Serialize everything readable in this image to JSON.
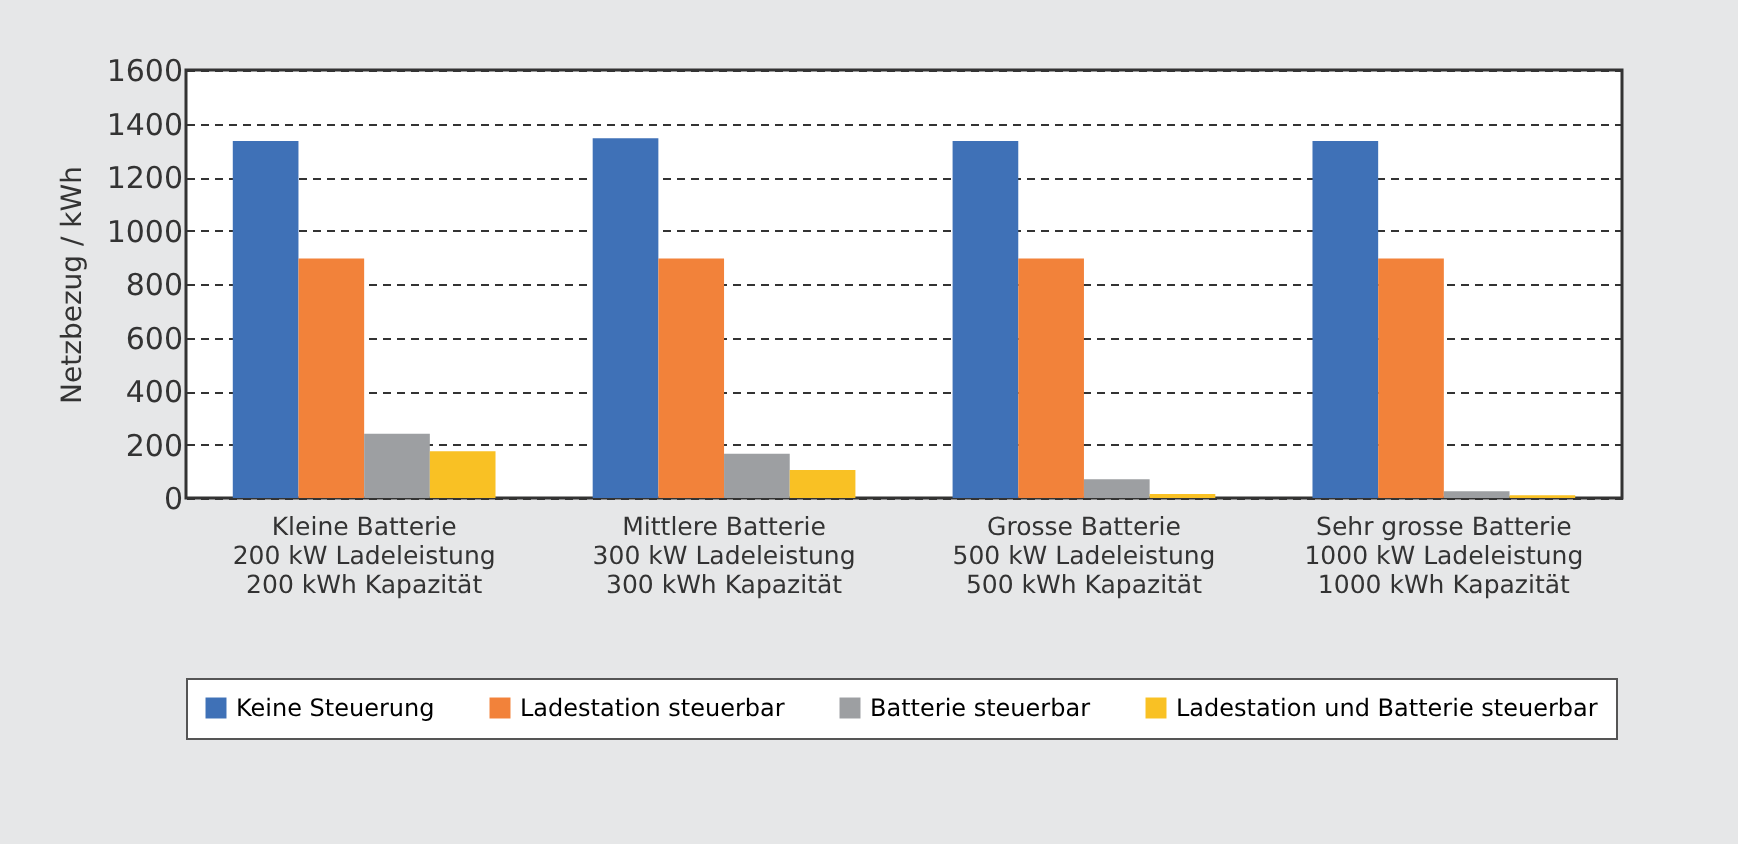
{
  "chart_data": {
    "type": "bar",
    "ylabel": "Netzbezug / kWh",
    "categories": [
      "Kleine Batterie\n200 kW Ladeleistung\n200 kWh Kapazität",
      "Mittlere Batterie\n300 kW Ladeleistung\n300 kWh Kapazität",
      "Grosse Batterie\n500 kW Ladeleistung\n500 kWh Kapazität",
      "Sehr grosse Batterie\n1000 kW Ladeleistung\n1000 kWh Kapazität"
    ],
    "series": [
      {
        "name": "Keine Steuerung",
        "color": "#3f71b7",
        "values": [
          1335,
          1345,
          1335,
          1335
        ]
      },
      {
        "name": "Ladestation steuerbar",
        "color": "#f2823a",
        "values": [
          895,
          895,
          895,
          895
        ]
      },
      {
        "name": "Batterie steuerbar",
        "color": "#9d9fa2",
        "values": [
          240,
          165,
          70,
          25
        ]
      },
      {
        "name": "Ladestation und Batterie steuerbar",
        "color": "#f9c124",
        "values": [
          175,
          105,
          15,
          10
        ]
      }
    ],
    "ylim": [
      0,
      1600
    ],
    "yticks": [
      0,
      200,
      400,
      600,
      800,
      1000,
      1200,
      1400,
      1600
    ],
    "grid": "y",
    "legend": "bottom"
  }
}
